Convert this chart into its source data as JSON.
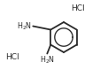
{
  "bg_color": "#ffffff",
  "line_color": "#2a2a2a",
  "text_color": "#2a2a2a",
  "fig_width": 1.14,
  "fig_height": 0.88,
  "dpi": 100,
  "lw": 1.3
}
